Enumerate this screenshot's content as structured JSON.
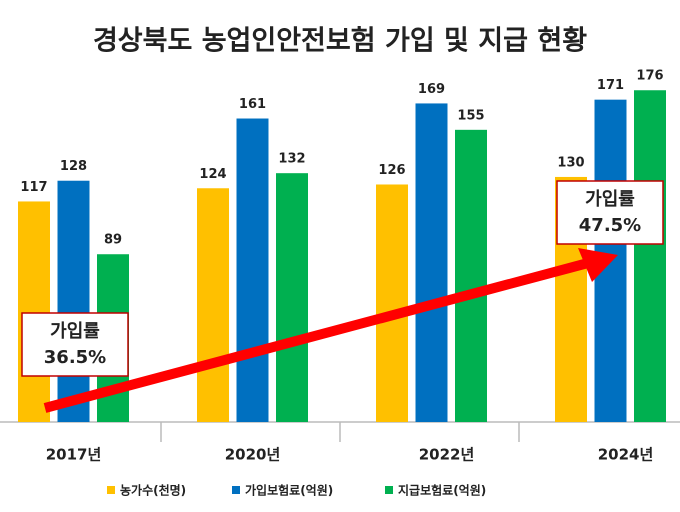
{
  "chart_data": {
    "type": "bar",
    "title": "경상북도 농업인안전보험 가입 및 지급 현황",
    "categories": [
      "2017년",
      "2020년",
      "2022년",
      "2024년"
    ],
    "series": [
      {
        "name": "농가수(천명)",
        "color": "#FFC000",
        "values": [
          117,
          124,
          126,
          130
        ]
      },
      {
        "name": "가입보험료(억원)",
        "color": "#0070C0",
        "values": [
          128,
          161,
          169,
          171
        ]
      },
      {
        "name": "지급보험료(억원)",
        "color": "#00B050",
        "values": [
          89,
          132,
          155,
          176
        ]
      }
    ],
    "annotations": [
      {
        "title": "가입률",
        "text": "36.5%"
      },
      {
        "title": "가입률",
        "text": "47.5%"
      }
    ],
    "legend": "bottom"
  }
}
